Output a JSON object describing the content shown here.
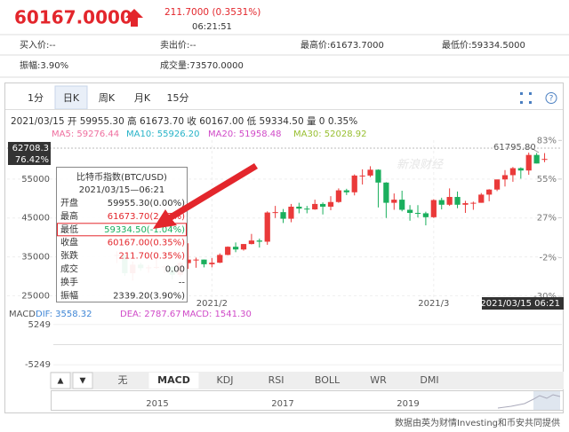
{
  "header": {
    "price": "60167.0000",
    "change": "211.7000 (0.3531%)",
    "time": "06:21:51"
  },
  "quote": {
    "bid": "买入价:--",
    "ask": "卖出价:--",
    "high": "最高价:61673.7000",
    "low": "最低价:59334.5000",
    "amplitude": "振幅:3.90%",
    "volume": "成交量:73570.0000"
  },
  "tabs": [
    "1分",
    "日K",
    "周K",
    "月K",
    "15分"
  ],
  "info": "2021/03/15 开 59955.30 高 61673.70 收 60167.00 低 59334.50 量 0 0.35%",
  "ma_legend": [
    {
      "label": "MA5: 59276.44",
      "color": "#ef6f9f"
    },
    {
      "label": "MA10: 55926.20",
      "color": "#27b3c8"
    },
    {
      "label": "MA20: 51958.48",
      "color": "#d04ac8"
    },
    {
      "label": "MA30: 52028.92",
      "color": "#98bf30"
    }
  ],
  "watermark": "新浪财经",
  "chart_data": {
    "type": "candlestick",
    "up_color": "#ea3a3a",
    "down_color": "#1aaf5d",
    "categories": [
      null,
      null,
      null,
      null,
      null,
      null,
      null,
      null,
      null,
      null,
      null,
      null,
      "2021/2",
      null,
      null,
      null,
      null,
      null,
      null,
      null,
      null,
      null,
      null,
      null,
      null,
      null,
      null,
      null,
      null,
      null,
      null,
      null,
      null,
      null,
      null,
      null,
      null,
      null,
      null,
      null,
      "2021/3",
      null,
      null,
      null,
      null,
      null,
      null,
      null,
      null,
      null,
      null,
      null,
      null,
      null,
      "2021/03/15 06:21"
    ],
    "candles": [
      [
        35500,
        36400,
        33400,
        35500
      ],
      [
        35500,
        35600,
        30100,
        30800
      ],
      [
        30800,
        33800,
        28900,
        33000
      ],
      [
        33000,
        33500,
        31400,
        32100
      ],
      [
        32100,
        32900,
        30900,
        32300
      ],
      [
        32300,
        34800,
        31900,
        32400
      ],
      [
        32400,
        32800,
        30800,
        32500
      ],
      [
        32500,
        32500,
        29200,
        30400
      ],
      [
        30400,
        33800,
        29900,
        33400
      ],
      [
        33400,
        38500,
        31900,
        34300
      ],
      [
        34300,
        34800,
        32200,
        34300
      ],
      [
        34300,
        34300,
        32300,
        33100
      ],
      [
        33100,
        34700,
        32300,
        33500
      ],
      [
        33500,
        35900,
        33400,
        35500
      ],
      [
        35500,
        37700,
        35400,
        37600
      ],
      [
        37600,
        38700,
        36200,
        36900
      ],
      [
        36900,
        38300,
        36600,
        38300
      ],
      [
        38300,
        40900,
        38200,
        39200
      ],
      [
        39200,
        39700,
        37400,
        38900
      ],
      [
        38900,
        46700,
        38100,
        46400
      ],
      [
        46400,
        48100,
        45000,
        46500
      ],
      [
        46500,
        47300,
        43700,
        44800
      ],
      [
        44800,
        48600,
        43900,
        47900
      ],
      [
        47900,
        48900,
        46200,
        47400
      ],
      [
        47400,
        48100,
        46200,
        47200
      ],
      [
        47200,
        49700,
        47100,
        48600
      ],
      [
        48600,
        49000,
        45900,
        47900
      ],
      [
        47900,
        50600,
        47000,
        49100
      ],
      [
        49100,
        52600,
        48900,
        52100
      ],
      [
        52100,
        52500,
        50900,
        51600
      ],
      [
        51600,
        56200,
        50800,
        55900
      ],
      [
        55900,
        57500,
        53600,
        55900
      ],
      [
        55900,
        58300,
        55500,
        57400
      ],
      [
        57400,
        57500,
        47700,
        54100
      ],
      [
        54100,
        54200,
        45000,
        48900
      ],
      [
        48900,
        51300,
        47100,
        49700
      ],
      [
        49700,
        52000,
        46700,
        47100
      ],
      [
        47100,
        48300,
        44300,
        46300
      ],
      [
        46300,
        48300,
        45100,
        46200
      ],
      [
        46200,
        46600,
        43100,
        45200
      ],
      [
        45200,
        49800,
        45000,
        49600
      ],
      [
        49600,
        50200,
        47200,
        48400
      ],
      [
        48400,
        52600,
        48100,
        50400
      ],
      [
        50400,
        51800,
        47500,
        48400
      ],
      [
        48400,
        49400,
        46300,
        48800
      ],
      [
        48800,
        49200,
        47100,
        48900
      ],
      [
        48900,
        51400,
        48900,
        51000
      ],
      [
        51000,
        52400,
        49300,
        52300
      ],
      [
        52300,
        54900,
        51900,
        54900
      ],
      [
        54900,
        57300,
        53100,
        56000
      ],
      [
        56000,
        58100,
        54300,
        57800
      ],
      [
        57800,
        58000,
        55100,
        57200
      ],
      [
        57200,
        61800,
        56100,
        61200
      ],
      [
        61200,
        61700,
        59000,
        59000
      ],
      [
        59955.3,
        61673.7,
        59334.5,
        60167.0
      ]
    ],
    "ylim": [
      23500,
      65000
    ],
    "yticks": [
      55000,
      45000,
      35000,
      25000
    ],
    "y2lim": [
      -33.8,
      83.2
    ],
    "y2ticks": [
      {
        "value": 83,
        "label": "83%"
      },
      {
        "value": 55,
        "label": "55%"
      },
      {
        "value": 27,
        "label": "27%"
      },
      {
        "value": -2,
        "label": "-2%"
      },
      {
        "value": -30,
        "label": "-30%"
      }
    ],
    "grid": true,
    "max_label": "61795.80",
    "crosshair_price": "62708.3",
    "crosshair_pct": "76.42%"
  },
  "tooltip": {
    "title": "比特币指数(BTC/USD)",
    "time": "2021/03/15—06:21",
    "rows": [
      [
        "开盘",
        "59955.30(0.00%)"
      ],
      [
        "最高",
        "61673.70(2.87%)"
      ],
      [
        "最低",
        "59334.50(-1.04%)"
      ],
      [
        "收盘",
        "60167.00(0.35%)"
      ],
      [
        "张跌",
        "211.70(0.35%)"
      ],
      [
        "成交",
        "0.00"
      ],
      [
        "换手",
        "--"
      ],
      [
        "振幅",
        "2339.20(3.90%)"
      ]
    ]
  },
  "macd": {
    "legend": [
      "MACD",
      "DIF: 3558.32",
      "DEA: 2787.67",
      "MACD: 1541.30"
    ],
    "ylim": [
      -7500,
      7500
    ],
    "yticks": [
      5249,
      -5249
    ]
  },
  "indicator_tabs": [
    "无",
    "MACD",
    "KDJ",
    "RSI",
    "BOLL",
    "WR",
    "DMI"
  ],
  "navigator_years": [
    "2015",
    "2017",
    "2019"
  ],
  "footer": "数据由英为财情Investing和币安共同提供"
}
